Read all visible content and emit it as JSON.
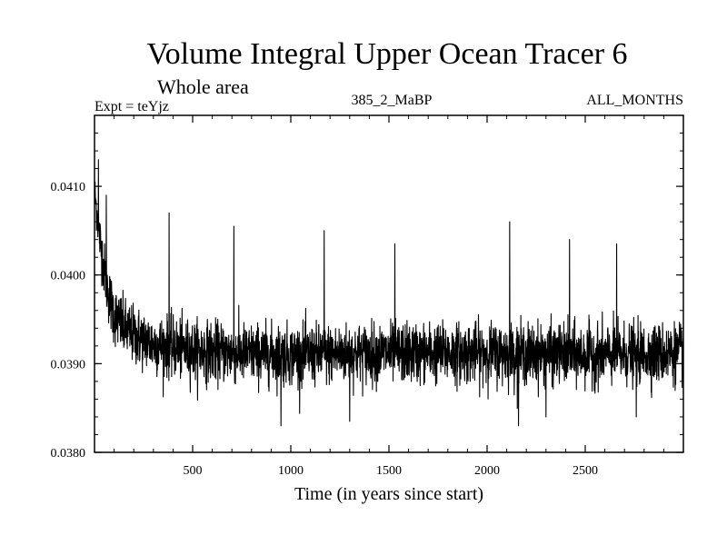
{
  "chart_data": {
    "type": "line",
    "title": "Volume Integral Upper Ocean Tracer 6",
    "subtitle": "Whole area",
    "left_label": "Expt = teYjz",
    "center_label": "385_2_MaBP",
    "right_label": "ALL_MONTHS",
    "xlabel": "Time (in years since start)",
    "ylabel": "",
    "xlim": [
      0,
      3000
    ],
    "ylim": [
      0.038,
      0.0418
    ],
    "x_ticks": [
      500,
      1000,
      1500,
      2000,
      2500
    ],
    "x_tick_labels": [
      "500",
      "1000",
      "1500",
      "2000",
      "2500"
    ],
    "y_ticks": [
      0.038,
      0.039,
      0.04,
      0.041
    ],
    "y_tick_labels": [
      "0.0380",
      "0.0390",
      "0.0400",
      "0.0410"
    ],
    "series": [
      {
        "color": "#000000",
        "envelope": {
          "x": [
            0,
            25,
            50,
            75,
            100,
            150,
            200,
            300,
            400,
            500,
            700,
            1000,
            1500,
            2000,
            2500,
            3000
          ],
          "mean": [
            0.04095,
            0.04045,
            0.04005,
            0.03975,
            0.03955,
            0.0394,
            0.03932,
            0.03922,
            0.03918,
            0.03915,
            0.03912,
            0.0391,
            0.03912,
            0.03912,
            0.0391,
            0.03912
          ],
          "amplitude": [
            0.0002,
            0.00025,
            0.00028,
            0.0003,
            0.0003,
            0.0003,
            0.0003,
            0.0003,
            0.0003,
            0.0003,
            0.0003,
            0.0003,
            0.0003,
            0.0003,
            0.0003,
            0.0003
          ]
        },
        "peaks": [
          [
            20,
            0.0413
          ],
          [
            60,
            0.0409
          ],
          [
            380,
            0.0407
          ],
          [
            710,
            0.04055
          ],
          [
            1170,
            0.0405
          ],
          [
            1530,
            0.04035
          ],
          [
            2115,
            0.0406
          ],
          [
            2420,
            0.0404
          ],
          [
            2660,
            0.04035
          ]
        ],
        "troughs": [
          [
            950,
            0.0383
          ],
          [
            1300,
            0.03835
          ],
          [
            2160,
            0.0383
          ],
          [
            2300,
            0.0384
          ],
          [
            2760,
            0.0384
          ]
        ]
      }
    ]
  }
}
